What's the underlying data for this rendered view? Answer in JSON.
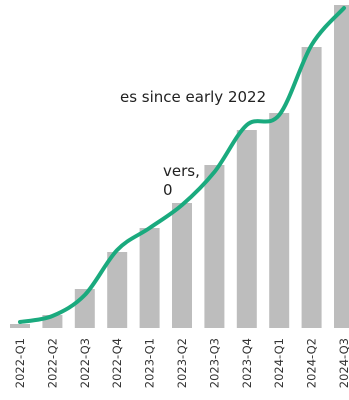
{
  "chart_data": {
    "type": "bar",
    "annotations": [
      "es since early 2022",
      "vers,",
      "0"
    ],
    "categories": [
      "2022-Q1",
      "2022-Q2",
      "2022-Q3",
      "2022-Q4",
      "2023-Q1",
      "2023-Q2",
      "2023-Q3",
      "2023-Q4",
      "2024-Q1",
      "2024-Q2",
      "2024-Q3"
    ],
    "values": [
      4,
      13,
      39,
      76,
      100,
      125,
      163,
      198,
      215,
      281,
      323
    ],
    "color": "#bdbdbd",
    "series": [
      {
        "color": "#1aaa7e",
        "values": [
          6,
          12,
          33,
          78,
          100,
          123,
          156,
          203,
          213,
          283,
          320
        ]
      }
    ],
    "ylim": [
      0,
      328
    ]
  }
}
